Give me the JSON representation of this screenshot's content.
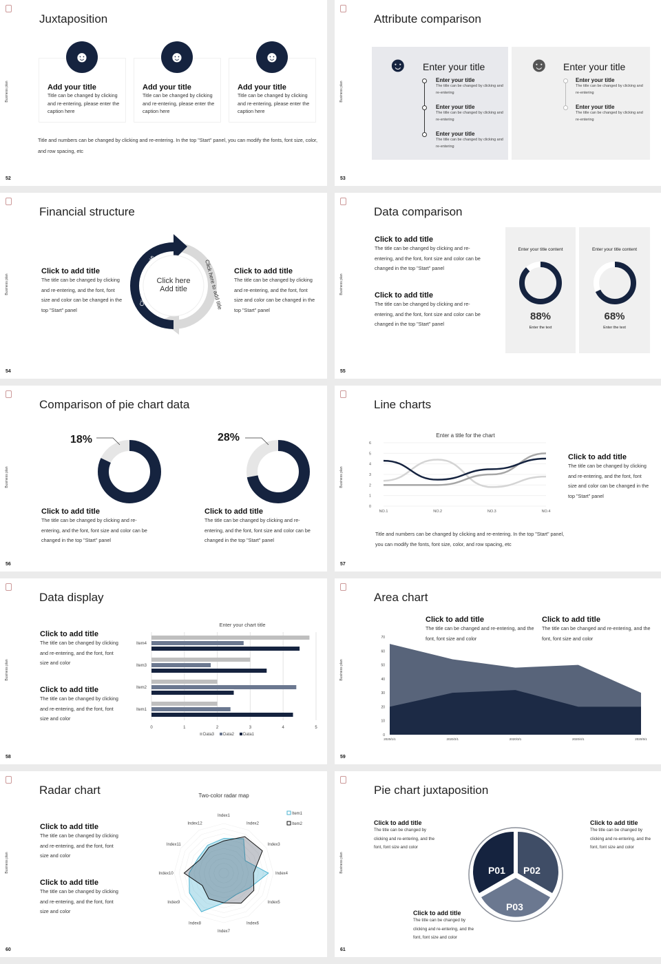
{
  "common": {
    "side_label": "Business plan"
  },
  "s52": {
    "num": "52",
    "title": "Juxtaposition",
    "cards": [
      {
        "title": "Add your title",
        "text": "Title can be changed by clicking and re-entering, please enter the caption here"
      },
      {
        "title": "Add your title",
        "text": "Title can be changed by clicking and re-entering, please enter the caption here"
      },
      {
        "title": "Add your title",
        "text": "Title can be changed by clicking and re-entering, please enter the caption here"
      }
    ],
    "footer": "Title and numbers can be changed by clicking and re-entering. In the top \"Start\" panel, you can modify the fonts, font size, color, and row spacing, etc"
  },
  "s53": {
    "num": "53",
    "title": "Attribute comparison",
    "left": {
      "heading": "Enter your title",
      "items": [
        {
          "title": "Enter your title",
          "text": "The title can be changed by clicking and re-entering"
        },
        {
          "title": "Enter your title",
          "text": "The title can be changed by clicking and re-entering"
        },
        {
          "title": "Enter your title",
          "text": "The title can be changed by clicking and re-entering"
        }
      ]
    },
    "right": {
      "heading": "Enter your title",
      "items": [
        {
          "title": "Enter your title",
          "text": "The title can be changed by clicking and re-entering"
        },
        {
          "title": "Enter your title",
          "text": "The title can be changed by clicking and re-entering"
        }
      ]
    }
  },
  "s54": {
    "num": "54",
    "title": "Financial structure",
    "left": {
      "title": "Click to add title",
      "text": "The title can be changed by clicking and re-entering, and the font, font size and color can be changed in the top \"Start\" panel"
    },
    "right": {
      "title": "Click to add title",
      "text": "The title can be changed by clicking and re-entering, and the font, font size and color can be changed in the top \"Start\" panel"
    },
    "center": "Click here Add title",
    "arc_left": "Click here to add title",
    "arc_right": "Click here to add title"
  },
  "s55": {
    "num": "55",
    "title": "Data comparison",
    "blocks": [
      {
        "title": "Click to add title",
        "text": "The title can be changed by clicking and re-entering, and the font, font size and color can be changed in the top \"Start\" panel"
      },
      {
        "title": "Click to add title",
        "text": "The title can be changed by clicking and re-entering, and the font, font size and color can be changed in the top \"Start\" panel"
      }
    ],
    "cards": [
      {
        "title": "Enter your title content",
        "value": "88%",
        "percent": 88,
        "caption": "Enter the text"
      },
      {
        "title": "Enter your title content",
        "value": "68%",
        "percent": 68,
        "caption": "Enter the text"
      }
    ]
  },
  "s56": {
    "num": "56",
    "title": "Comparison of pie chart data",
    "items": [
      {
        "value": "18%",
        "percent": 18,
        "title": "Click to add title",
        "text": "The title can be changed by clicking and re-entering, and the font, font size and color can be changed in the top \"Start\" panel"
      },
      {
        "value": "28%",
        "percent": 28,
        "title": "Click to add title",
        "text": "The title can be changed by clicking and re-entering, and the font, font size and color can be changed in the top \"Start\" panel"
      }
    ]
  },
  "s57": {
    "num": "57",
    "title": "Line charts",
    "side_title": "Click to add title",
    "side_text": "The title can be changed by clicking and re-entering, and the font, font size and color can be changed in the top \"Start\" panel",
    "footer": "Title and numbers can be changed by clicking and re-entering. In the top \"Start\" panel, you can modify the fonts, font size, color, and row spacing, etc"
  },
  "s58": {
    "num": "58",
    "title": "Data display",
    "blocks": [
      {
        "title": "Click to add title",
        "text": "The title can be changed by clicking and re-entering, and the font, font size and color"
      },
      {
        "title": "Click to add title",
        "text": "The title can be changed by clicking and re-entering, and the font, font size and color"
      }
    ]
  },
  "s59": {
    "num": "59",
    "title": "Area chart",
    "blocks": [
      {
        "title": "Click to add title",
        "text": "The title can be changed and re-entering, and the font, font size and color"
      },
      {
        "title": "Click to add title",
        "text": "The title can be changed and re-entering, and the font, font size and color"
      }
    ]
  },
  "s60": {
    "num": "60",
    "title": "Radar chart",
    "blocks": [
      {
        "title": "Click to add title",
        "text": "The title can be changed by clicking and re-entering, and the font, font size and color"
      },
      {
        "title": "Click to add title",
        "text": "The title can be changed by clicking and re-entering, and the font, font size and color"
      }
    ]
  },
  "s61": {
    "num": "61",
    "title": "Pie chart juxtaposition",
    "segments": [
      "P01",
      "P02",
      "P03"
    ],
    "blocks": [
      {
        "title": "Click to add title",
        "text": "The title can be changed by clicking and re-entering, and the font, font size and color"
      },
      {
        "title": "Click to add title",
        "text": "The title can be changed by clicking and re-entering, and the font, font size and color"
      },
      {
        "title": "Click to add title",
        "text": "The title can be changed by clicking and re-entering, and the font, font size and color"
      }
    ]
  },
  "colors": {
    "navy": "#15233f",
    "slate": "#3f4d66",
    "steel": "#6b7890",
    "light_gray": "#d9d9d9",
    "panel": "#ededf0"
  },
  "chart_data": [
    {
      "type": "line",
      "title": "Enter a title for the chart",
      "categories": [
        "NO.1",
        "NO.2",
        "NO.3",
        "NO.4"
      ],
      "ylim": [
        0,
        6
      ],
      "yticks": [
        "0",
        "1",
        "2",
        "3",
        "4",
        "5",
        "6"
      ],
      "series": [
        {
          "color": "#15233f",
          "values": [
            4.3,
            2.5,
            3.5,
            4.5
          ]
        },
        {
          "color": "#d4d4d4",
          "values": [
            2.4,
            4.4,
            1.8,
            2.8
          ]
        },
        {
          "color": "#a6a6a6",
          "values": [
            2,
            2,
            3,
            5
          ]
        }
      ],
      "grid": true
    },
    {
      "type": "bar",
      "orientation": "horizontal",
      "title": "Enter your chart title",
      "categories": [
        "Item1",
        "Item2",
        "Item3",
        "Item4"
      ],
      "xlim": [
        0,
        5
      ],
      "xticks": [
        "0",
        "1",
        "2",
        "3",
        "4",
        "5"
      ],
      "series": [
        {
          "name": "Data1",
          "color": "#15233f",
          "values": [
            4.3,
            2.5,
            3.5,
            4.5
          ]
        },
        {
          "name": "Data2",
          "color": "#6b7890",
          "values": [
            2.4,
            4.4,
            1.8,
            2.8
          ]
        },
        {
          "name": "Data3",
          "color": "#bfbfbf",
          "values": [
            2,
            2,
            3,
            4.8
          ]
        }
      ],
      "legend": "bottom",
      "grid": true
    },
    {
      "type": "area",
      "categories": [
        "2020/1/1",
        "2020/2/1",
        "2020/3/1",
        "2020/4/1",
        "2020/5/1"
      ],
      "ylim": [
        0,
        70
      ],
      "yticks": [
        "0",
        "10",
        "20",
        "30",
        "40",
        "50",
        "60",
        "70"
      ],
      "series": [
        {
          "color": "#58647a",
          "values": [
            65,
            54,
            48,
            50,
            30
          ]
        },
        {
          "color": "#1c2a45",
          "values": [
            20,
            30,
            32,
            20,
            20
          ]
        }
      ]
    },
    {
      "type": "radar",
      "title": "Two-color radar map",
      "categories": [
        "Index1",
        "Index2",
        "Index3",
        "Index4",
        "Index5",
        "Index6",
        "Index7",
        "Index8",
        "Index9",
        "Index10",
        "Index11",
        "Index12"
      ],
      "rmax": 10,
      "series": [
        {
          "name": "Item1",
          "color": "#4bb3d1",
          "values": [
            7,
            8,
            5,
            9,
            6,
            5,
            6,
            9,
            8,
            7,
            6,
            6.5
          ]
        },
        {
          "name": "Item2",
          "color": "#111111",
          "values": [
            6.5,
            8.5,
            9,
            6,
            7,
            7,
            6,
            6,
            5,
            8,
            5.5,
            6
          ]
        }
      ],
      "legend": "top-right"
    }
  ]
}
